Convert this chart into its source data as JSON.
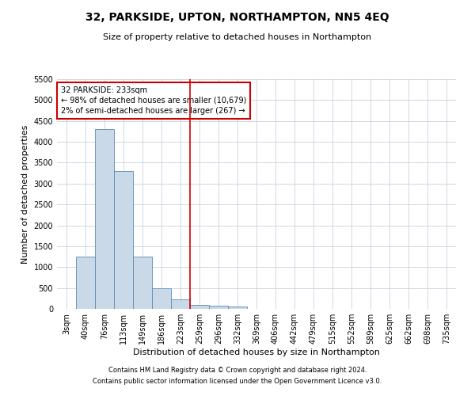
{
  "title": "32, PARKSIDE, UPTON, NORTHAMPTON, NN5 4EQ",
  "subtitle": "Size of property relative to detached houses in Northampton",
  "xlabel": "Distribution of detached houses by size in Northampton",
  "ylabel": "Number of detached properties",
  "categories": [
    "3sqm",
    "40sqm",
    "76sqm",
    "113sqm",
    "149sqm",
    "186sqm",
    "223sqm",
    "259sqm",
    "296sqm",
    "332sqm",
    "369sqm",
    "406sqm",
    "442sqm",
    "479sqm",
    "515sqm",
    "552sqm",
    "589sqm",
    "625sqm",
    "662sqm",
    "698sqm",
    "735sqm"
  ],
  "values": [
    0,
    1250,
    4300,
    3300,
    1250,
    500,
    225,
    100,
    75,
    50,
    0,
    0,
    0,
    0,
    0,
    0,
    0,
    0,
    0,
    0,
    0
  ],
  "bar_color": "#c9d9e8",
  "bar_edge_color": "#5a8ab5",
  "vline_x": 6.5,
  "vline_color": "#cc0000",
  "annotation_line1": "32 PARKSIDE: 233sqm",
  "annotation_line2": "← 98% of detached houses are smaller (10,679)",
  "annotation_line3": "2% of semi-detached houses are larger (267) →",
  "annotation_box_color": "#cc0000",
  "ylim": [
    0,
    5500
  ],
  "yticks": [
    0,
    500,
    1000,
    1500,
    2000,
    2500,
    3000,
    3500,
    4000,
    4500,
    5000,
    5500
  ],
  "footer1": "Contains HM Land Registry data © Crown copyright and database right 2024.",
  "footer2": "Contains public sector information licensed under the Open Government Licence v3.0.",
  "background_color": "#ffffff",
  "grid_color": "#c8d0da",
  "title_fontsize": 10,
  "subtitle_fontsize": 8,
  "ylabel_fontsize": 8,
  "xlabel_fontsize": 8,
  "tick_fontsize": 7,
  "annotation_fontsize": 7,
  "footer_fontsize": 6
}
